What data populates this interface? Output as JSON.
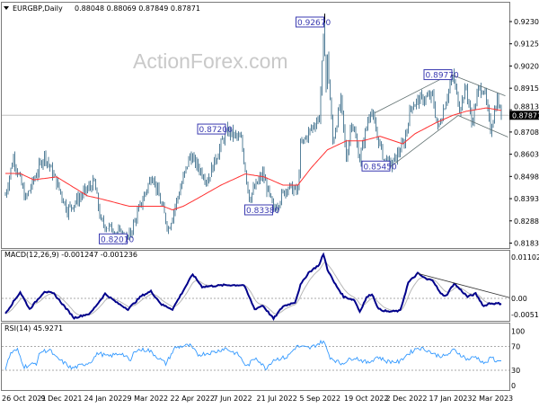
{
  "chart_data": [
    {
      "type": "candlestick",
      "title": "EURGBP,Daily",
      "ohlc_label": "0.88048 0.88069 0.87849 0.87871",
      "watermark": "ActionForex.com",
      "bar_count": 369,
      "ylim": [
        0.8183,
        0.923
      ],
      "y_ticks": [
        "0.92300",
        "0.91250",
        "0.90200",
        "0.89150",
        "0.88130",
        "0.87080",
        "0.86030",
        "0.84980",
        "0.83930",
        "0.82880",
        "0.81830"
      ],
      "current_price": "0.87871",
      "close_path": [
        [
          0,
          0.841
        ],
        [
          6,
          0.859
        ],
        [
          15,
          0.839
        ],
        [
          29,
          0.86
        ],
        [
          38,
          0.847
        ],
        [
          46,
          0.834
        ],
        [
          66,
          0.847
        ],
        [
          71,
          0.828
        ],
        [
          91,
          0.8201
        ],
        [
          109,
          0.851
        ],
        [
          121,
          0.825
        ],
        [
          137,
          0.8597
        ],
        [
          150,
          0.848
        ],
        [
          164,
          0.8716
        ],
        [
          175,
          0.867
        ],
        [
          181,
          0.8397
        ],
        [
          191,
          0.851
        ],
        [
          199,
          0.8338
        ],
        [
          209,
          0.845
        ],
        [
          217,
          0.8426
        ],
        [
          219,
          0.864
        ],
        [
          227,
          0.8724
        ],
        [
          233,
          0.878
        ],
        [
          237,
          0.9267
        ],
        [
          238,
          0.892
        ],
        [
          239,
          0.906
        ],
        [
          243,
          0.866
        ],
        [
          249,
          0.8856
        ],
        [
          253,
          0.858
        ],
        [
          257,
          0.8766
        ],
        [
          263,
          0.858
        ],
        [
          271,
          0.8822
        ],
        [
          275,
          0.871
        ],
        [
          281,
          0.858
        ],
        [
          286,
          0.8545
        ],
        [
          296,
          0.866
        ],
        [
          301,
          0.883
        ],
        [
          307,
          0.886
        ],
        [
          317,
          0.8877
        ],
        [
          321,
          0.872
        ],
        [
          332,
          0.8977
        ],
        [
          337,
          0.8822
        ],
        [
          342,
          0.892
        ],
        [
          346,
          0.875
        ],
        [
          351,
          0.8907
        ],
        [
          355,
          0.8915
        ],
        [
          360,
          0.872
        ],
        [
          365,
          0.8864
        ],
        [
          368,
          0.8787
        ]
      ],
      "moving_average": [
        [
          0,
          0.8512
        ],
        [
          11,
          0.8512
        ],
        [
          21,
          0.8482
        ],
        [
          38,
          0.8496
        ],
        [
          61,
          0.8406
        ],
        [
          71,
          0.8392
        ],
        [
          92,
          0.8357
        ],
        [
          117,
          0.8357
        ],
        [
          124,
          0.834
        ],
        [
          132,
          0.8357
        ],
        [
          142,
          0.8392
        ],
        [
          160,
          0.8457
        ],
        [
          178,
          0.851
        ],
        [
          192,
          0.8496
        ],
        [
          206,
          0.8457
        ],
        [
          217,
          0.8457
        ],
        [
          227,
          0.8539
        ],
        [
          239,
          0.8624
        ],
        [
          253,
          0.8666
        ],
        [
          265,
          0.8666
        ],
        [
          278,
          0.8688
        ],
        [
          295,
          0.8652
        ],
        [
          304,
          0.87
        ],
        [
          319,
          0.875
        ],
        [
          332,
          0.8787
        ],
        [
          342,
          0.8806
        ],
        [
          357,
          0.8822
        ],
        [
          368,
          0.881
        ]
      ],
      "annotations": [
        {
          "label": "0.92670",
          "bar": 237,
          "price": 0.9267
        },
        {
          "label": "0.89770",
          "bar": 332,
          "price": 0.8977
        },
        {
          "label": "0.87200",
          "bar": 164,
          "price": 0.872
        },
        {
          "label": "0.85450",
          "bar": 286,
          "price": 0.8545
        },
        {
          "label": "0.83380",
          "bar": 199,
          "price": 0.8338
        },
        {
          "label": "0.82010",
          "bar": 91,
          "price": 0.8201
        }
      ],
      "trendlines": [
        [
          [
            286,
            0.8545
          ],
          [
            336,
            0.8786
          ]
        ],
        [
          [
            274,
            0.8798
          ],
          [
            329,
            0.8977
          ]
        ],
        [
          [
            332,
            0.8977
          ],
          [
            371,
            0.8879
          ]
        ],
        [
          [
            336,
            0.8786
          ],
          [
            373,
            0.8684
          ]
        ]
      ]
    },
    {
      "type": "line",
      "title": "MACD(12,26,9) -0.001247 -0.001236",
      "ylim": [
        -0.005182,
        0.011023
      ],
      "y_ticks": [
        "0.011023",
        "0.00",
        "-0.005182"
      ],
      "macd": [
        [
          0,
          -0.0036
        ],
        [
          11,
          0.0015
        ],
        [
          18,
          -0.0026
        ],
        [
          29,
          0.0017
        ],
        [
          36,
          0.0011
        ],
        [
          51,
          -0.0047
        ],
        [
          63,
          -0.0036
        ],
        [
          74,
          0.0011
        ],
        [
          83,
          -0.0011
        ],
        [
          91,
          -0.0026
        ],
        [
          101,
          0.0006
        ],
        [
          108,
          0.0017
        ],
        [
          116,
          -0.0015
        ],
        [
          124,
          -0.0026
        ],
        [
          131,
          0.0013
        ],
        [
          139,
          0.0058
        ],
        [
          146,
          0.0028
        ],
        [
          163,
          0.0032
        ],
        [
          177,
          0.0032
        ],
        [
          185,
          -0.0026
        ],
        [
          191,
          -0.0017
        ],
        [
          199,
          -0.0049
        ],
        [
          206,
          -0.0019
        ],
        [
          215,
          -0.0009
        ],
        [
          219,
          0.0032
        ],
        [
          225,
          0.0062
        ],
        [
          233,
          0.0081
        ],
        [
          236,
          0.0107
        ],
        [
          239,
          0.007
        ],
        [
          244,
          0.0038
        ],
        [
          251,
          0.0004
        ],
        [
          259,
          -0.0004
        ],
        [
          263,
          -0.0032
        ],
        [
          268,
          0.0002
        ],
        [
          272,
          0.0011
        ],
        [
          277,
          -0.0026
        ],
        [
          284,
          -0.0032
        ],
        [
          293,
          -0.003
        ],
        [
          299,
          0.0038
        ],
        [
          306,
          0.006
        ],
        [
          313,
          0.0045
        ],
        [
          317,
          0.0045
        ],
        [
          323,
          0.0011
        ],
        [
          327,
          0.0006
        ],
        [
          333,
          0.0036
        ],
        [
          337,
          0.0023
        ],
        [
          343,
          0.0004
        ],
        [
          349,
          0.0011
        ],
        [
          355,
          -0.0019
        ],
        [
          359,
          -0.0012
        ],
        [
          364,
          -0.001247
        ]
      ],
      "trendline": [
        [
          306,
          0.006
        ],
        [
          374,
          0.0002
        ]
      ]
    },
    {
      "type": "line",
      "title": "RSI(14) 45.9271",
      "ylim": [
        0,
        100
      ],
      "y_ticks": [
        "100",
        "70",
        "30",
        "0"
      ],
      "levels": [
        70,
        30
      ],
      "rsi": [
        [
          0,
          33
        ],
        [
          4,
          59
        ],
        [
          9,
          64
        ],
        [
          14,
          36
        ],
        [
          23,
          42
        ],
        [
          26,
          61
        ],
        [
          33,
          64
        ],
        [
          37,
          52
        ],
        [
          46,
          39
        ],
        [
          49,
          33
        ],
        [
          56,
          38
        ],
        [
          63,
          44
        ],
        [
          69,
          59
        ],
        [
          76,
          53
        ],
        [
          86,
          59
        ],
        [
          93,
          45
        ],
        [
          96,
          64
        ],
        [
          106,
          64
        ],
        [
          109,
          59
        ],
        [
          119,
          41
        ],
        [
          126,
          68
        ],
        [
          133,
          71
        ],
        [
          137,
          71
        ],
        [
          143,
          56
        ],
        [
          156,
          61
        ],
        [
          163,
          67
        ],
        [
          173,
          56
        ],
        [
          179,
          36
        ],
        [
          186,
          52
        ],
        [
          193,
          33
        ],
        [
          199,
          48
        ],
        [
          209,
          52
        ],
        [
          216,
          70
        ],
        [
          226,
          67
        ],
        [
          236,
          79
        ],
        [
          241,
          52
        ],
        [
          249,
          41
        ],
        [
          259,
          52
        ],
        [
          269,
          42
        ],
        [
          276,
          53
        ],
        [
          283,
          45
        ],
        [
          293,
          44
        ],
        [
          296,
          53
        ],
        [
          306,
          68
        ],
        [
          313,
          64
        ],
        [
          319,
          56
        ],
        [
          326,
          53
        ],
        [
          333,
          64
        ],
        [
          343,
          48
        ],
        [
          349,
          53
        ],
        [
          356,
          41
        ],
        [
          361,
          52
        ],
        [
          364,
          45.9
        ]
      ]
    }
  ],
  "x_axis": {
    "ticks": [
      {
        "label": "26 Oct 2021",
        "bar": 0
      },
      {
        "label": "9 Dec 2021",
        "bar": 29
      },
      {
        "label": "24 Jan 2022",
        "bar": 61
      },
      {
        "label": "9 Mar 2022",
        "bar": 93
      },
      {
        "label": "22 Apr 2022",
        "bar": 125
      },
      {
        "label": "7 Jun 2022",
        "bar": 157
      },
      {
        "label": "21 Jul 2022",
        "bar": 189
      },
      {
        "label": "5 Sep 2022",
        "bar": 221
      },
      {
        "label": "19 Oct 2022",
        "bar": 254
      },
      {
        "label": "2 Dec 2022",
        "bar": 285
      },
      {
        "label": "17 Jan 2023",
        "bar": 317
      },
      {
        "label": "2 Mar 2023",
        "bar": 349
      }
    ]
  },
  "colors": {
    "bars": "#55809a",
    "ma": "#ff3030",
    "macd": "#00008b",
    "signal": "#b8b8b8",
    "rsi": "#3399ff",
    "annotation": "#3a3ab0"
  }
}
